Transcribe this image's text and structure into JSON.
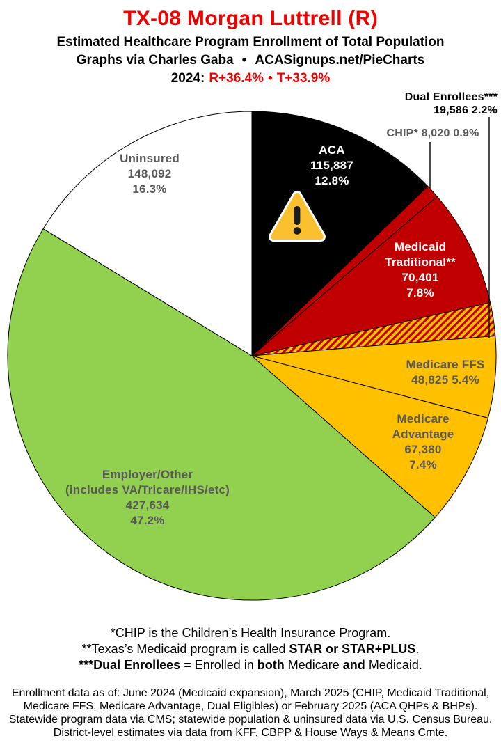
{
  "header": {
    "title": "TX-08 Morgan Luttrell (R)",
    "subtitle": "Estimated Healthcare Program Enrollment of Total Population",
    "credit_left": "Graphs via Charles Gaba",
    "credit_bullet": "•",
    "credit_right": "ACASignups.net/PieCharts",
    "year_label": "2024:",
    "r_margin": "R+36.4%",
    "year_bullet": "•",
    "t_margin": "T+33.9%"
  },
  "colors": {
    "title_red": "#f20000",
    "label_gray": "#595959",
    "slice_black": "#000000",
    "slice_red": "#c00000",
    "slice_gold": "#ffc000",
    "slice_green": "#92d050",
    "slice_white": "#ffffff"
  },
  "chart_data": {
    "type": "pie",
    "title": "Estimated Healthcare Program Enrollment of Total Population",
    "start_angle_deg_from_12oclock": 0,
    "direction": "clockwise",
    "total_label": "Total Population",
    "hatch": {
      "bg": "#ffc000",
      "stripe": "#c00000"
    },
    "slices": [
      {
        "id": "aca",
        "name": "ACA",
        "value": 115887,
        "pct": 12.8,
        "color": "#000000",
        "label_lines": [
          "ACA",
          "115,887",
          "12.8%"
        ]
      },
      {
        "id": "chip",
        "name": "CHIP",
        "value": 8020,
        "pct": 0.9,
        "color": "#c00000",
        "label_lines": [
          "CHIP* 8,020 0.9%"
        ]
      },
      {
        "id": "medicaid-traditional",
        "name": "Medicaid Traditional",
        "value": 70401,
        "pct": 7.8,
        "color": "#c00000",
        "label_lines": [
          "Medicaid",
          "Traditional**",
          "70,401",
          "7.8%"
        ]
      },
      {
        "id": "dual-enrollees",
        "name": "Dual Enrollees",
        "value": 19586,
        "pct": 2.2,
        "color": "hatch",
        "label_lines": [
          "Dual Enrollees***",
          "19,586 2.2%"
        ]
      },
      {
        "id": "medicare-ffs",
        "name": "Medicare FFS",
        "value": 48825,
        "pct": 5.4,
        "color": "#ffc000",
        "label_lines": [
          "Medicare FFS",
          "48,825 5.4%"
        ]
      },
      {
        "id": "medicare-advantage",
        "name": "Medicare Advantage",
        "value": 67380,
        "pct": 7.4,
        "color": "#ffc000",
        "label_lines": [
          "Medicare",
          "Advantage",
          "67,380",
          "7.4%"
        ]
      },
      {
        "id": "employer-other",
        "name": "Employer/Other (includes VA/Tricare/IHS/etc)",
        "value": 427634,
        "pct": 47.2,
        "color": "#92d050",
        "label_lines": [
          "Employer/Other",
          "(includes VA/Tricare/IHS/etc)",
          "427,634",
          "47.2%"
        ]
      },
      {
        "id": "uninsured",
        "name": "Uninsured",
        "value": 148092,
        "pct": 16.3,
        "color": "#ffffff",
        "label_lines": [
          "Uninsured",
          "148,092",
          "16.3%"
        ]
      }
    ]
  },
  "footnotes": {
    "line1": "*CHIP is the Children’s Health Insurance Program.",
    "line2_pre": "**Texas’s Medicaid program is called ",
    "line2_bold": "STAR or STAR+PLUS",
    "line2_post": ".",
    "line3_bold1": "***Dual Enrollees",
    "line3_mid1": " = Enrolled in ",
    "line3_bold2": "both",
    "line3_mid2": " Medicare ",
    "line3_bold3": "and",
    "line3_post": " Medicaid."
  },
  "source": {
    "line1": "Enrollment data as of: June 2024 (Medicaid expansion), March 2025 (CHIP, Medicaid Traditional,",
    "line2": "Medicare FFS, Medicare Advantage, Dual Eligibles) or February 2025 (ACA QHPs & BHPs).",
    "line3": "Statewide program data via CMS; statewide population & uninsured data via U.S. Census Bureau.",
    "line4": "District-level estimates via data from KFF, CBPP & House Ways & Means Cmte."
  }
}
